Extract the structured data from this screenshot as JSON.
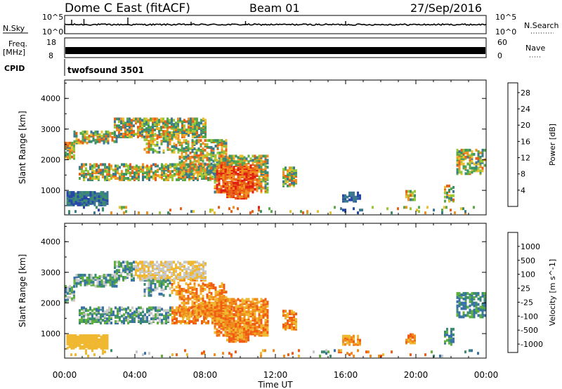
{
  "header": {
    "station": "Dome C East (fitACF)",
    "beam": "Beam 01",
    "date": "27/Sep/2016"
  },
  "strips": {
    "nsky": {
      "label": "N.Sky",
      "ticks_left": [
        "10^5",
        "10^0"
      ],
      "right_label": "N.Search",
      "ticks_right": [
        "10^5",
        "10^0"
      ]
    },
    "freq": {
      "label_line1": "Freq.",
      "label_line2": "[MHz]",
      "ticks_left": [
        "18",
        "8"
      ],
      "right_label": "Nave",
      "ticks_right": [
        "60",
        "0"
      ]
    },
    "cpid": {
      "label": "CPID",
      "value": "twofsound 3501"
    }
  },
  "chart_data": [
    {
      "type": "heatmap",
      "name": "power",
      "ylabel": "Slant Range [km]",
      "ylim": [
        200,
        4600
      ],
      "yticks": [
        "1000",
        "2000",
        "3000",
        "4000"
      ],
      "xlim_hours": [
        0,
        24
      ],
      "colorbar_label": "Power [dB]",
      "colorbar_ticks": [
        "4",
        "8",
        "12",
        "16",
        "20",
        "24",
        "28"
      ],
      "colors": [
        "#1010e0",
        "#2848a8",
        "#3c7890",
        "#3c9068",
        "#58a848",
        "#98c838",
        "#e8c030",
        "#f09020",
        "#e86018",
        "#e02010"
      ]
    },
    {
      "type": "heatmap",
      "name": "velocity",
      "ylabel": "Slant Range [km]",
      "ylim": [
        200,
        4600
      ],
      "yticks": [
        "1000",
        "2000",
        "3000",
        "4000"
      ],
      "xlim_hours": [
        0,
        24
      ],
      "xticks": [
        "00:00",
        "04:00",
        "08:00",
        "12:00",
        "16:00",
        "20:00",
        "00:00"
      ],
      "xlabel": "Time UT",
      "colorbar_label": "Velocity [m s^-1]",
      "colorbar_ticks": [
        "1000",
        "500",
        "100",
        "25",
        "-25",
        "-100",
        "-500",
        "-1000"
      ],
      "colors": [
        "#1c30c8",
        "#3870a8",
        "#3c8c70",
        "#60b040",
        "#c8c8c8",
        "#f0b830",
        "#f08c1c",
        "#f05c14",
        "#e01c10"
      ]
    }
  ]
}
